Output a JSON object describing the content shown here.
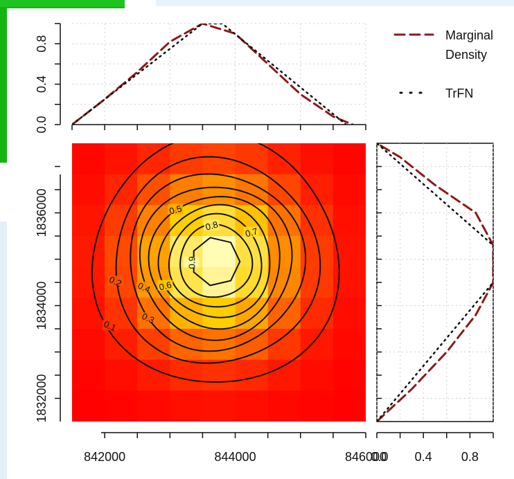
{
  "chart_data": [
    {
      "type": "heatmap",
      "panel": "main",
      "xlim": [
        841500,
        846000
      ],
      "ylim": [
        1831500,
        1837500
      ],
      "x_ticks": [
        842000,
        844000,
        846000
      ],
      "x_tick_labels": [
        "842000",
        "844000",
        "846000"
      ],
      "y_ticks": [
        1832000,
        1834000,
        1836000
      ],
      "y_tick_labels": [
        "1832000",
        "1834000",
        "1836000"
      ],
      "center": [
        843700,
        1834950
      ],
      "contour_levels": [
        0.1,
        0.2,
        0.3,
        0.4,
        0.5,
        0.6,
        0.7,
        0.8,
        0.9
      ],
      "contour_labels": [
        "0.1",
        "0.2",
        "0.3",
        "0.4",
        "0.5",
        "0.6",
        "0.7",
        "0.8",
        "0.9"
      ],
      "color_scale": [
        "#ff0000",
        "#ff6a00",
        "#ffd000",
        "#ffffc0"
      ]
    },
    {
      "type": "line",
      "panel": "top-marginal",
      "xlim": [
        841500,
        846000
      ],
      "ylim": [
        0,
        1
      ],
      "y_ticks": [
        0.0,
        0.4,
        0.8
      ],
      "y_tick_labels": [
        "0.0",
        "0.4",
        "0.8"
      ],
      "grid": true,
      "series": [
        {
          "name": "Marginal Density",
          "style": "dashed",
          "color": "#8b1a1a",
          "x": [
            841500,
            842000,
            842500,
            843000,
            843500,
            844000,
            844500,
            845000,
            845500,
            845800
          ],
          "y": [
            0.0,
            0.25,
            0.52,
            0.82,
            1.0,
            0.9,
            0.6,
            0.3,
            0.08,
            0.0
          ]
        },
        {
          "name": "TrFN",
          "style": "dotted",
          "color": "#111111",
          "x": [
            841500,
            843500,
            843800,
            845700
          ],
          "y": [
            0.0,
            1.0,
            1.0,
            0.0
          ]
        }
      ]
    },
    {
      "type": "line",
      "panel": "right-marginal",
      "orientation": "horizontal",
      "xlim": [
        0,
        1
      ],
      "ylim": [
        1831500,
        1837500
      ],
      "x_ticks": [
        0.0,
        0.4,
        0.8
      ],
      "x_tick_labels": [
        "0.0",
        "0.4",
        "0.8"
      ],
      "grid": true,
      "series": [
        {
          "name": "Marginal Density",
          "style": "dashed",
          "color": "#8b1a1a",
          "x": [
            0.0,
            0.3,
            0.6,
            0.85,
            1.0,
            1.0,
            0.85,
            0.5,
            0.2,
            0.0
          ],
          "y": [
            1831500,
            1832200,
            1833000,
            1833800,
            1834500,
            1835300,
            1836000,
            1836600,
            1837200,
            1837500
          ]
        },
        {
          "name": "TrFN",
          "style": "dotted",
          "color": "#111111",
          "x": [
            0.0,
            1.0,
            1.0,
            0.0
          ],
          "y": [
            1831500,
            1834500,
            1835300,
            1837500
          ]
        }
      ]
    }
  ],
  "legend": {
    "placement": "top-right",
    "items": [
      {
        "label_line1": "Marginal",
        "label_line2": "Density",
        "style": "dashed",
        "color": "#8b1a1a"
      },
      {
        "label_line1": "TrFN",
        "label_line2": "",
        "style": "dotted",
        "color": "#111111"
      }
    ]
  }
}
